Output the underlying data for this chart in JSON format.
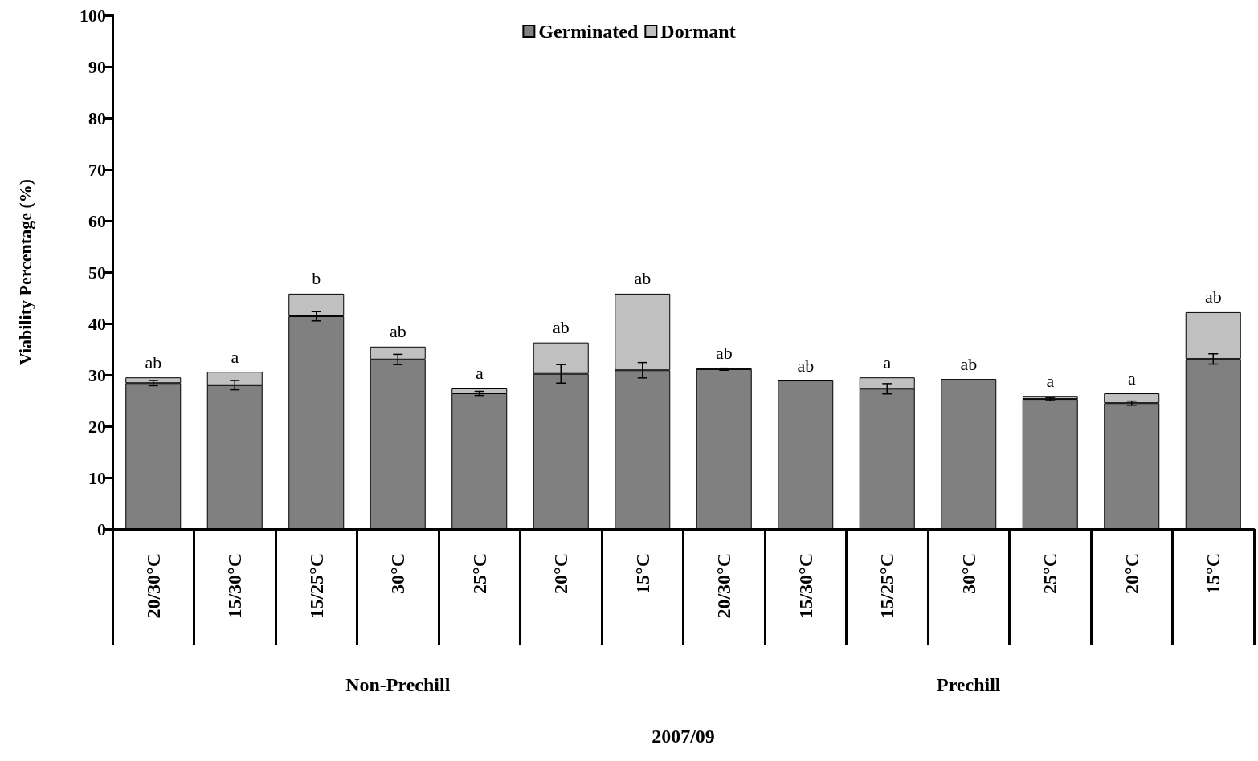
{
  "chart_data": {
    "type": "bar",
    "stacked": true,
    "ylabel": "Viability Percentage (%)",
    "categories": [
      "20/30°C",
      "15/30°C",
      "15/25°C",
      "30°C",
      "25°C",
      "20°C",
      "15°C",
      "20/30°C",
      "15/30°C",
      "15/25°C",
      "30°C",
      "25°C",
      "20°C",
      "15°C"
    ],
    "series": [
      {
        "name": "Germinated",
        "color": "#808080",
        "values": [
          28.4,
          28,
          41.4,
          33,
          26.4,
          30.2,
          30.9,
          31.1,
          28.9,
          27.3,
          29.2,
          25.3,
          24.5,
          33.1
        ],
        "errors": [
          0.5,
          0.9,
          0.9,
          1,
          0.4,
          1.8,
          1.5,
          0.2,
          null,
          1,
          null,
          0.3,
          0.4,
          1
        ]
      },
      {
        "name": "Dormant",
        "color": "#c0c0c0",
        "values": [
          1.1,
          2.6,
          4.4,
          2.5,
          1.1,
          6.1,
          14.9,
          0.3,
          0,
          2.2,
          0,
          0.6,
          1.9,
          9.1
        ],
        "value_labels": [
          "ab",
          "a",
          "b",
          "ab",
          "a",
          "ab",
          "ab",
          "ab",
          "ab",
          "a",
          "ab",
          "a",
          "a",
          "ab"
        ]
      }
    ],
    "ylim": [
      0,
      100
    ],
    "yticks": [
      0,
      10,
      20,
      30,
      40,
      50,
      60,
      70,
      80,
      90,
      100
    ],
    "grid": false,
    "legend": "top",
    "annotations": [
      "Non-Prechill",
      "Prechill",
      "2007/09"
    ]
  }
}
